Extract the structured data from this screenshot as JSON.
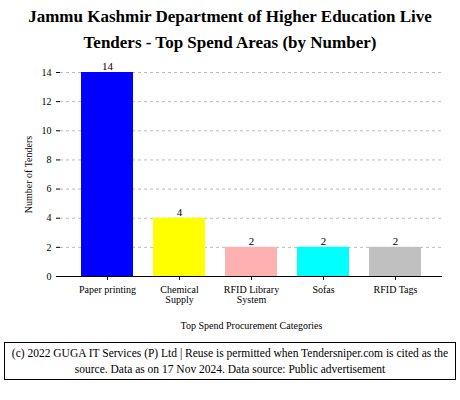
{
  "chart_data": {
    "type": "bar",
    "title": "Jammu Kashmir Department of Higher Education Live Tenders - Top Spend Areas (by Number)",
    "x_label": "Top Spend Procurement Categories",
    "y_label": "Number of Tenders",
    "categories": [
      "Paper printing",
      "Chemical Supply",
      "RFID Library System",
      "Sofas",
      "RFID Tags"
    ],
    "values": [
      14,
      4,
      2,
      2,
      2
    ],
    "colors": [
      "#0000ff",
      "#ffff00",
      "#ffb0b0",
      "#00ffff",
      "#c0c0c0"
    ],
    "ylim": [
      0,
      14
    ],
    "yticks": [
      0,
      2,
      4,
      6,
      8,
      10,
      12,
      14
    ],
    "grid": true,
    "data_labels": true,
    "caption": "(c) 2022 GUGA IT Services (P) Ltd | Reuse is permitted when Tendersniper.com is cited as the source. Data as on 17 Nov 2024. Data source: Public advertisement"
  }
}
